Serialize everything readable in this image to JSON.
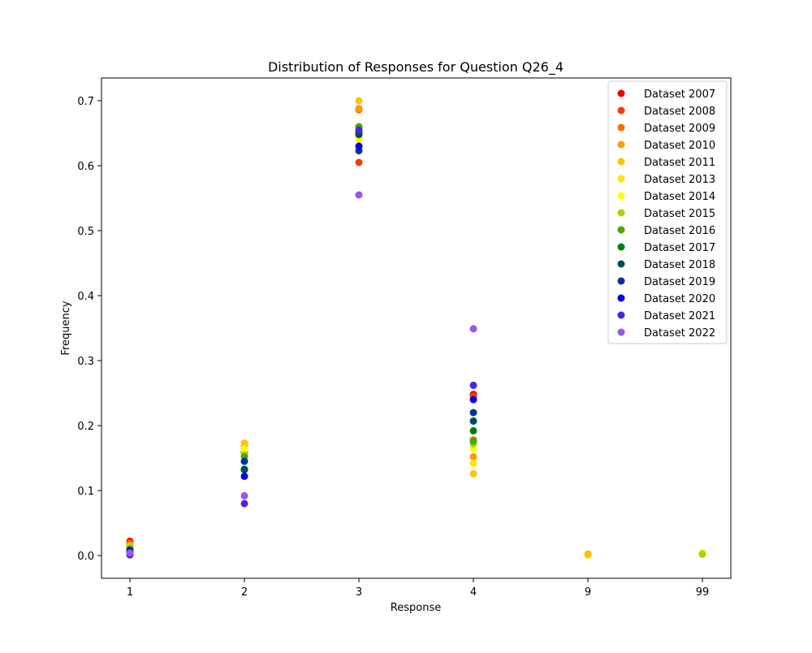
{
  "chart_data": {
    "type": "scatter",
    "title": "Distribution of Responses for Question Q26_4",
    "xlabel": "Response",
    "ylabel": "Frequency",
    "categories": [
      "1",
      "2",
      "3",
      "4",
      "9",
      "99"
    ],
    "ylim": [
      -0.035,
      0.735
    ],
    "yticks": [
      0.0,
      0.1,
      0.2,
      0.3,
      0.4,
      0.5,
      0.6,
      0.7
    ],
    "ytick_labels": [
      "0.0",
      "0.1",
      "0.2",
      "0.3",
      "0.4",
      "0.5",
      "0.6",
      "0.7"
    ],
    "grid": false,
    "legend_position": "top-right",
    "series": [
      {
        "name": "Dataset 2007",
        "color": "#ee0000",
        "values": [
          0.022,
          0.16,
          0.65,
          0.248,
          null,
          null
        ]
      },
      {
        "name": "Dataset 2008",
        "color": "#ff3a00",
        "values": [
          0.02,
          0.162,
          0.605,
          0.245,
          null,
          null
        ]
      },
      {
        "name": "Dataset 2009",
        "color": "#ff6a00",
        "values": [
          0.018,
          0.158,
          0.686,
          0.178,
          0.002,
          null
        ]
      },
      {
        "name": "Dataset 2010",
        "color": "#ff9a00",
        "values": [
          0.016,
          0.168,
          0.688,
          0.152,
          0.002,
          null
        ]
      },
      {
        "name": "Dataset 2011",
        "color": "#ffc400",
        "values": [
          0.014,
          0.173,
          0.7,
          0.126,
          0.001,
          null
        ]
      },
      {
        "name": "Dataset 2013",
        "color": "#ffe600",
        "values": [
          0.012,
          0.165,
          0.645,
          0.142,
          null,
          0.004
        ]
      },
      {
        "name": "Dataset 2014",
        "color": "#ffff00",
        "values": [
          0.012,
          0.163,
          0.64,
          0.164,
          null,
          0.003
        ]
      },
      {
        "name": "Dataset 2015",
        "color": "#a8d400",
        "values": [
          0.012,
          0.155,
          0.66,
          0.172,
          null,
          0.002
        ]
      },
      {
        "name": "Dataset 2016",
        "color": "#4aa800",
        "values": [
          0.01,
          0.152,
          0.66,
          0.176,
          null,
          null
        ]
      },
      {
        "name": "Dataset 2017",
        "color": "#008000",
        "values": [
          0.008,
          0.133,
          0.652,
          0.192,
          null,
          null
        ]
      },
      {
        "name": "Dataset 2018",
        "color": "#005050",
        "values": [
          0.008,
          0.132,
          0.648,
          0.207,
          null,
          null
        ]
      },
      {
        "name": "Dataset 2019",
        "color": "#003399",
        "values": [
          0.008,
          0.145,
          0.623,
          0.22,
          null,
          null
        ]
      },
      {
        "name": "Dataset 2020",
        "color": "#0000ee",
        "values": [
          0.006,
          0.122,
          0.63,
          0.24,
          null,
          null
        ]
      },
      {
        "name": "Dataset 2021",
        "color": "#4a22ee",
        "values": [
          0.001,
          0.08,
          0.655,
          0.262,
          null,
          null
        ]
      },
      {
        "name": "Dataset 2022",
        "color": "#9955ee",
        "values": [
          0.004,
          0.092,
          0.555,
          0.349,
          null,
          null
        ]
      }
    ]
  }
}
